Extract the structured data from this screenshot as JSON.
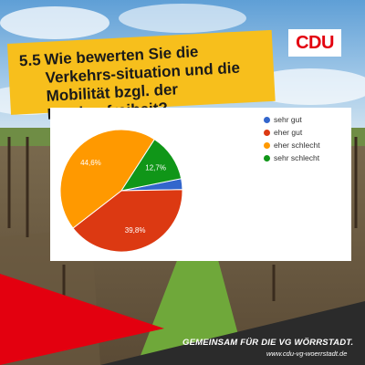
{
  "logo": {
    "text": "CDU"
  },
  "question": {
    "number": "5.5",
    "text": "Wie bewerten Sie die Verkehrs-situation und die Mobilität bzgl. der Barrierefreiheit?"
  },
  "footer": {
    "slogan": "GEMEINSAM FÜR DIE VG WÖRRSTADT.",
    "url": "www.cdu-vg-woerrstadt.de"
  },
  "chart_data": {
    "type": "pie",
    "categories": [
      "sehr gut",
      "eher gut",
      "eher schlecht",
      "sehr schlecht"
    ],
    "values": [
      2.9,
      39.8,
      44.6,
      12.7
    ],
    "labels": [
      "",
      "39,8%",
      "44,6%",
      "12,7%"
    ],
    "colors": [
      "#3366cc",
      "#dc3912",
      "#ff9900",
      "#109618"
    ],
    "legend_position": "right"
  }
}
